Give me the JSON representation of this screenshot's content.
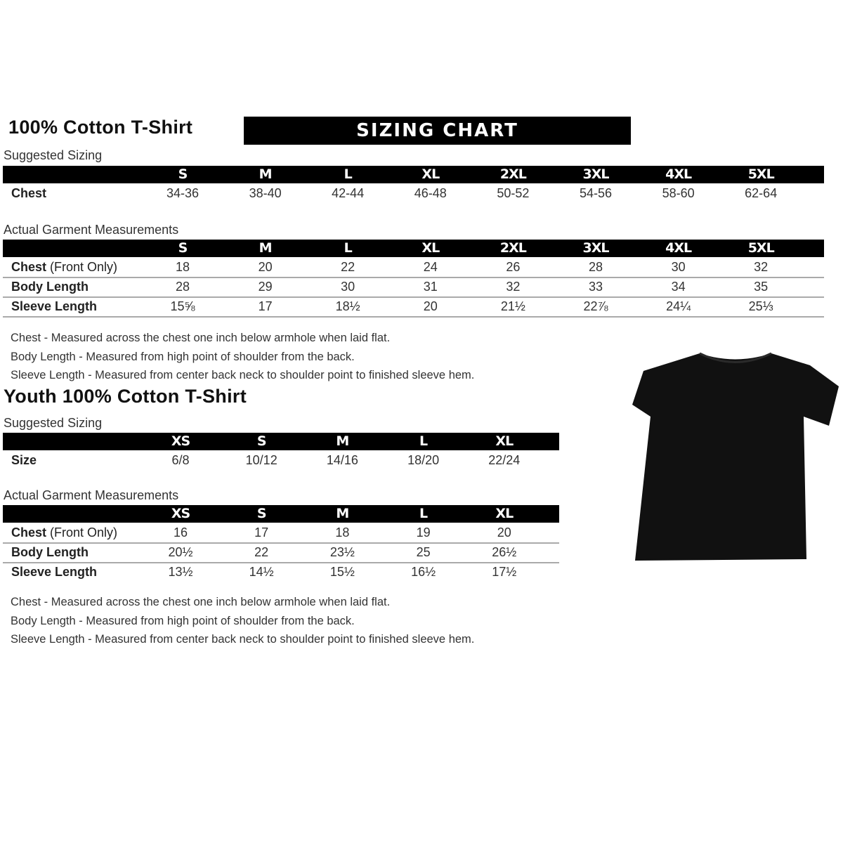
{
  "adult": {
    "title": "100% Cotton T-Shirt",
    "banner": "SIZING CHART",
    "suggested_label": "Suggested Sizing",
    "sizes": [
      "S",
      "M",
      "L",
      "XL",
      "2XL",
      "3XL",
      "4XL",
      "5XL"
    ],
    "suggested_rows": [
      {
        "label": "Chest",
        "values": [
          "34-36",
          "38-40",
          "42-44",
          "46-48",
          "50-52",
          "54-56",
          "58-60",
          "62-64"
        ]
      }
    ],
    "actual_label": "Actual Garment Measurements",
    "actual_rows": [
      {
        "label": "Chest",
        "label_suffix": " (Front Only)",
        "values": [
          "18",
          "20",
          "22",
          "24",
          "26",
          "28",
          "30",
          "32"
        ]
      },
      {
        "label": "Body Length",
        "values": [
          "28",
          "29",
          "30",
          "31",
          "32",
          "33",
          "34",
          "35"
        ]
      },
      {
        "label": "Sleeve Length",
        "values": [
          "15⅝",
          "17",
          "18½",
          "20",
          "21½",
          "22⅞",
          "24¼",
          "25⅓"
        ]
      }
    ],
    "notes": [
      "Chest - Measured across the chest one inch below armhole when laid flat.",
      "Body Length - Measured from high point of shoulder from the back.",
      "Sleeve Length - Measured from center back neck to shoulder point to finished sleeve hem."
    ]
  },
  "youth": {
    "title": "Youth 100% Cotton T-Shirt",
    "suggested_label": "Suggested Sizing",
    "sizes": [
      "XS",
      "S",
      "M",
      "L",
      "XL"
    ],
    "suggested_rows": [
      {
        "label": "Size",
        "values": [
          "6/8",
          "10/12",
          "14/16",
          "18/20",
          "22/24"
        ]
      }
    ],
    "actual_label": "Actual Garment Measurements",
    "actual_rows": [
      {
        "label": "Chest",
        "label_suffix": " (Front Only)",
        "values": [
          "16",
          "17",
          "18",
          "19",
          "20"
        ]
      },
      {
        "label": "Body Length",
        "values": [
          "20½",
          "22",
          "23½",
          "25",
          "26½"
        ]
      },
      {
        "label": "Sleeve Length",
        "values": [
          "13½",
          "14½",
          "15½",
          "16½",
          "17½"
        ]
      }
    ],
    "notes": [
      "Chest - Measured across the chest one inch below armhole when laid flat.",
      "Body Length - Measured from high point of shoulder from the back.",
      "Sleeve Length - Measured from center back neck to shoulder point to finished sleeve hem."
    ]
  },
  "colors": {
    "header": "#000000",
    "shirt": "#111111",
    "divider": "#aaaaaa"
  }
}
